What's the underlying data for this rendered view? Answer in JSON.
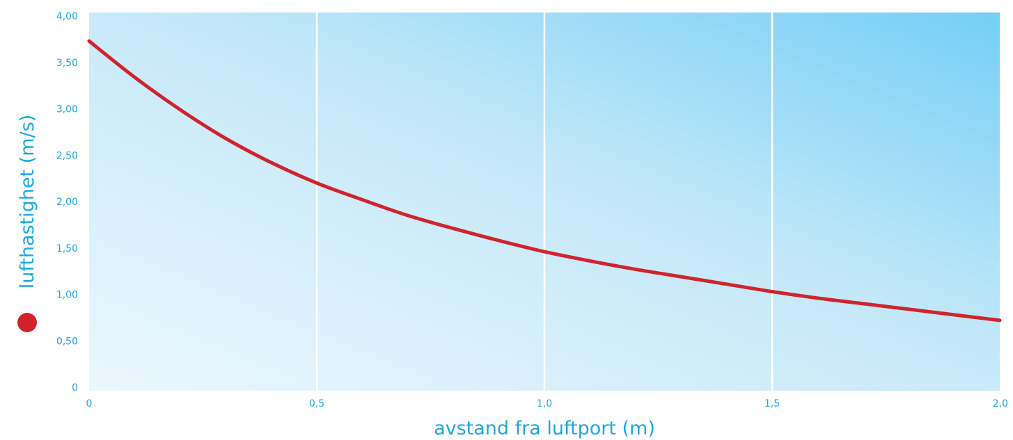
{
  "chart_data": {
    "type": "line",
    "title": "",
    "xlabel": "avstand fra luftport (m)",
    "ylabel": "lufthastighet (m/s)",
    "xlim": [
      0,
      2.0
    ],
    "ylim": [
      0,
      4.0
    ],
    "x_ticks": [
      {
        "value": 0,
        "label": "0"
      },
      {
        "value": 0.5,
        "label": "0,5"
      },
      {
        "value": 1.0,
        "label": "1,0"
      },
      {
        "value": 1.5,
        "label": "1,5"
      },
      {
        "value": 2.0,
        "label": "2,0"
      }
    ],
    "y_ticks": [
      {
        "value": 0,
        "label": "0"
      },
      {
        "value": 0.5,
        "label": "0,50"
      },
      {
        "value": 1.0,
        "label": "1,00"
      },
      {
        "value": 1.5,
        "label": "1,50"
      },
      {
        "value": 2.0,
        "label": "2,00"
      },
      {
        "value": 2.5,
        "label": "2,50"
      },
      {
        "value": 3.0,
        "label": "3,00"
      },
      {
        "value": 3.5,
        "label": "3,50"
      },
      {
        "value": 4.0,
        "label": "4,00"
      }
    ],
    "grid": "vertical",
    "series": [
      {
        "name": "",
        "x": [
          0,
          0.1,
          0.2,
          0.3,
          0.4,
          0.5,
          0.6,
          0.7,
          0.8,
          0.9,
          1.0,
          1.1,
          1.2,
          1.3,
          1.4,
          1.5,
          1.6,
          1.7,
          1.8,
          1.9,
          2.0
        ],
        "y": [
          3.73,
          3.34,
          2.99,
          2.68,
          2.42,
          2.2,
          2.02,
          1.85,
          1.71,
          1.58,
          1.46,
          1.36,
          1.27,
          1.19,
          1.11,
          1.03,
          0.96,
          0.9,
          0.84,
          0.78,
          0.72
        ]
      }
    ],
    "colors": {
      "line": "#d0242d",
      "marker": "#d0242d",
      "text": "#1aa9e0",
      "plot_bg_light": "#eaf6fd",
      "plot_bg_dark": "#78d0f5",
      "grid": "#ffffff"
    }
  }
}
